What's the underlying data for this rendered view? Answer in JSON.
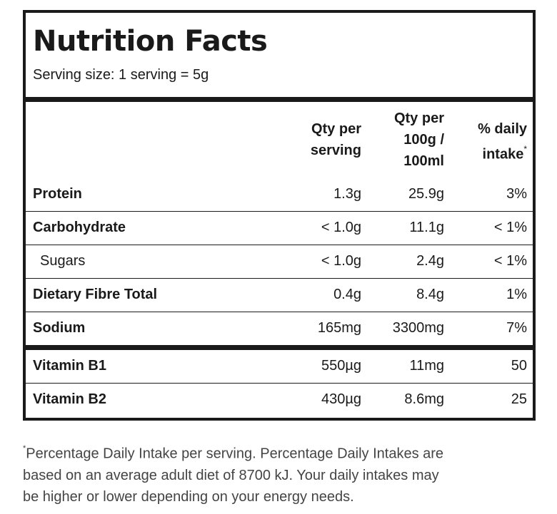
{
  "panel": {
    "title": "Nutrition Facts",
    "serving_size": "Serving size: 1 serving = 5g"
  },
  "columns": {
    "per_serving": [
      "Qty per",
      "serving"
    ],
    "per_100": [
      "Qty per",
      "100g /",
      "100ml"
    ],
    "daily": [
      "% daily",
      "intake"
    ],
    "daily_marker": "*"
  },
  "rows": [
    {
      "label": "Protein",
      "per_serving": "1.3g",
      "per_100": "25.9g",
      "daily": "3%"
    },
    {
      "label": "Carbohydrate",
      "per_serving": "< 1.0g",
      "per_100": "11.1g",
      "daily": "< 1%"
    },
    {
      "label": "Sugars",
      "per_serving": "< 1.0g",
      "per_100": "2.4g",
      "daily": "< 1%"
    },
    {
      "label": "Dietary Fibre Total",
      "per_serving": "0.4g",
      "per_100": "8.4g",
      "daily": "1%"
    },
    {
      "label": "Sodium",
      "per_serving": "165mg",
      "per_100": "3300mg",
      "daily": "7%"
    },
    {
      "label": "Vitamin B1",
      "per_serving": "550µg",
      "per_100": "11mg",
      "daily": "50"
    },
    {
      "label": "Vitamin B2",
      "per_serving": "430µg",
      "per_100": "8.6mg",
      "daily": "25"
    }
  ],
  "footnote": {
    "marker": "*",
    "lines": [
      "Percentage Daily Intake per serving. Percentage Daily Intakes are",
      "based on an average adult diet of 8700 kJ. Your daily intakes may",
      "be higher or lower depending on your energy needs."
    ]
  }
}
